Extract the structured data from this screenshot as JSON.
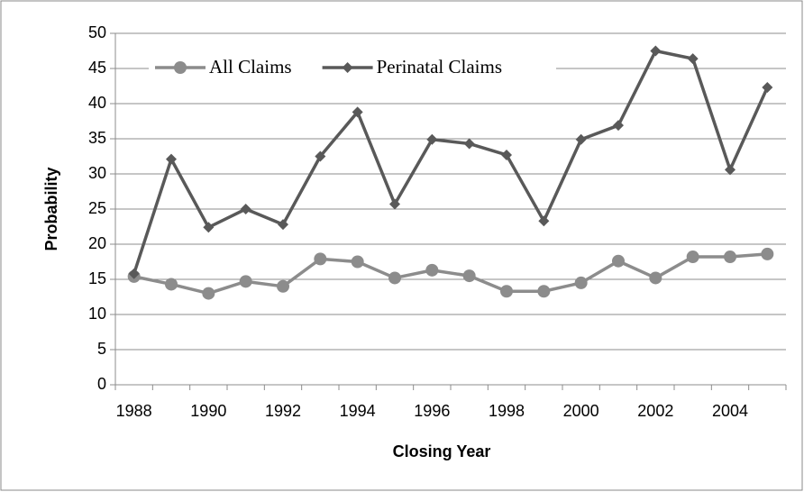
{
  "chart_data": {
    "type": "line",
    "x_label": "Closing Year",
    "y_label": "Probability",
    "categories": [
      "1988",
      null,
      "1990",
      null,
      "1992",
      null,
      "1994",
      null,
      "1996",
      null,
      "1998",
      null,
      "2000",
      null,
      "2002",
      null,
      "2004",
      null
    ],
    "series": [
      {
        "name": "All Claims",
        "color": "#8c8c8c",
        "marker": "circle",
        "values": [
          15.4,
          14.3,
          13.0,
          14.7,
          14.0,
          17.9,
          17.5,
          15.2,
          16.3,
          15.5,
          13.3,
          13.3,
          14.5,
          17.6,
          15.2,
          18.2,
          18.2,
          18.6
        ]
      },
      {
        "name": "Perinatal Claims",
        "color": "#595959",
        "marker": "diamond",
        "values": [
          15.8,
          32.1,
          22.4,
          25.0,
          22.8,
          32.5,
          38.8,
          25.7,
          34.9,
          34.3,
          32.7,
          23.3,
          34.9,
          36.9,
          47.5,
          46.4,
          30.6,
          42.3
        ]
      }
    ],
    "ylim": [
      0,
      50
    ],
    "yticks": [
      0,
      5,
      10,
      15,
      20,
      25,
      30,
      35,
      40,
      45,
      50
    ],
    "grid": true,
    "legend": "top-left"
  }
}
